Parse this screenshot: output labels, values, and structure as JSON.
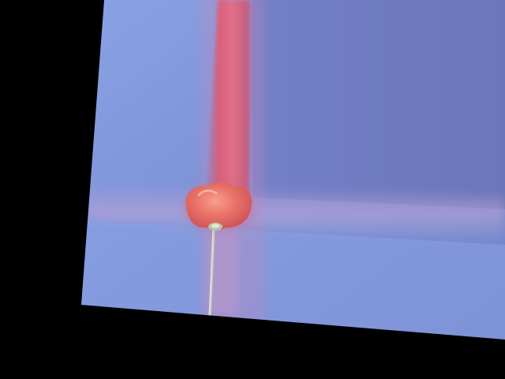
{
  "image": {
    "subject": "tilted-photo-of-pushpin-and-stripe",
    "colors": {
      "background": "#000000",
      "board_light": "#8ea6e6",
      "board_dark": "#6f7bbd",
      "stripe": "#d8657c",
      "pin_head": "#e8706a",
      "pin_needle": "#c9d1c4"
    }
  }
}
